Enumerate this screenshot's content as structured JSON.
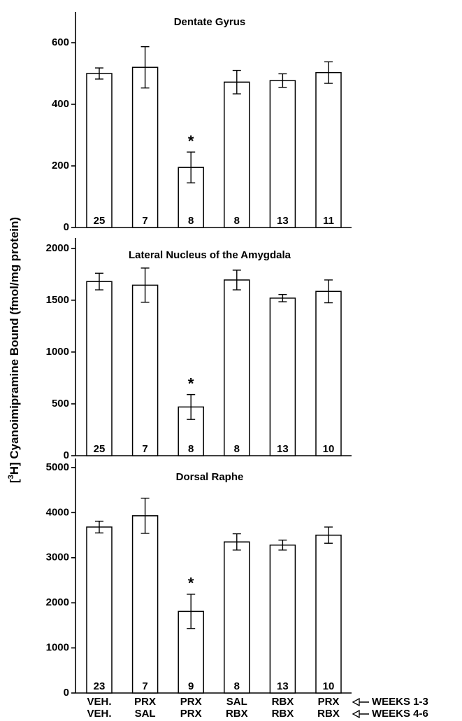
{
  "ylabel": {
    "pre": "[",
    "sup": "3",
    "post": "H] Cyanoimipramine Bound (fmol/mg protein)"
  },
  "x_categories": {
    "weeks_1_3": [
      "VEH.",
      "PRX",
      "PRX",
      "SAL",
      "RBX",
      "PRX"
    ],
    "weeks_4_6": [
      "VEH.",
      "SAL",
      "PRX",
      "RBX",
      "RBX",
      "RBX"
    ],
    "row_labels": [
      "WEEKS 1-3",
      "WEEKS 4-6"
    ]
  },
  "chart_data": [
    {
      "type": "bar",
      "title": "Dentate Gyrus",
      "color": "#ffffff",
      "values": [
        500,
        520,
        195,
        472,
        477,
        503
      ],
      "errors": [
        18,
        67,
        50,
        38,
        22,
        35
      ],
      "n": [
        25,
        7,
        8,
        8,
        13,
        11
      ],
      "significance": [
        null,
        null,
        "*",
        null,
        null,
        null
      ],
      "ylim": [
        0,
        700
      ],
      "yticks": [
        0,
        200,
        400,
        600
      ]
    },
    {
      "type": "bar",
      "title": "Lateral Nucleus of the Amygdala",
      "color": "#ffffff",
      "values": [
        1680,
        1645,
        470,
        1695,
        1520,
        1585
      ],
      "errors": [
        80,
        165,
        120,
        95,
        35,
        110
      ],
      "n": [
        25,
        7,
        8,
        8,
        13,
        10
      ],
      "significance": [
        null,
        null,
        "*",
        null,
        null,
        null
      ],
      "ylim": [
        0,
        2100
      ],
      "yticks": [
        0,
        500,
        1000,
        1500,
        2000
      ]
    },
    {
      "type": "bar",
      "title": "Dorsal Raphe",
      "color": "#ffffff",
      "values": [
        3680,
        3930,
        1810,
        3350,
        3280,
        3500
      ],
      "errors": [
        130,
        390,
        380,
        180,
        110,
        180
      ],
      "n": [
        23,
        7,
        9,
        8,
        13,
        10
      ],
      "significance": [
        null,
        null,
        "*",
        null,
        null,
        null
      ],
      "ylim": [
        0,
        5200
      ],
      "yticks": [
        0,
        1000,
        2000,
        3000,
        4000,
        5000
      ]
    }
  ]
}
